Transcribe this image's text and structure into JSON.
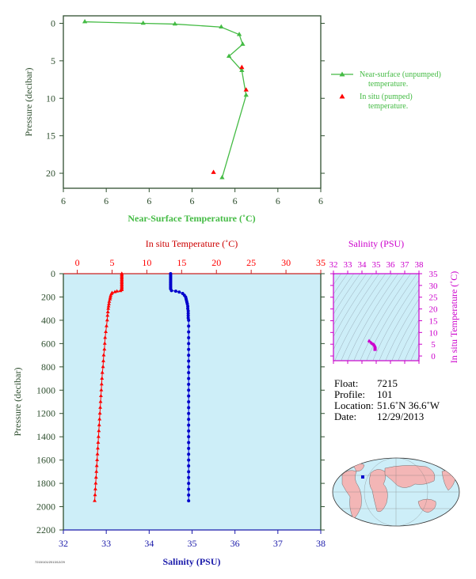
{
  "chart_data": [
    {
      "type": "line",
      "xlabel": "Near-Surface Temperature (˚C)",
      "ylabel": "Pressure (decibar)",
      "x_tick_labels": [
        "6",
        "6",
        "6",
        "6",
        "6",
        "6",
        "6"
      ],
      "y_tick_labels": [
        "0",
        "5",
        "10",
        "15",
        "20"
      ],
      "y_range": [
        -1,
        22
      ],
      "legend_position": "right",
      "legend": [
        "Near-surface (unpumped) temperature.",
        "In situ (pumped) temperature."
      ],
      "series": [
        {
          "name": "Near-surface (unpumped) temperature.",
          "points": [
            [
              5.85,
              -0.2
            ],
            [
              6.53,
              0.0
            ],
            [
              6.9,
              0.1
            ],
            [
              7.44,
              0.5
            ],
            [
              7.65,
              1.5
            ],
            [
              7.69,
              2.8
            ],
            [
              7.53,
              4.4
            ],
            [
              7.68,
              6.3
            ],
            [
              7.73,
              9.6
            ],
            [
              7.45,
              20.6
            ]
          ]
        },
        {
          "name": "In situ (pumped) temperature.",
          "points": [
            [
              7.68,
              5.9
            ],
            [
              7.73,
              8.9
            ],
            [
              7.35,
              19.9
            ]
          ]
        }
      ]
    },
    {
      "type": "scatter",
      "ylabel": "Pressure (decibar)",
      "x_top_label": "In situ Temperature (˚C)",
      "x_bottom_label": "Salinity (PSU)",
      "temperature_ticks": [
        "0",
        "5",
        "10",
        "15",
        "20",
        "25",
        "30",
        "35"
      ],
      "salinity_ticks": [
        "32",
        "33",
        "34",
        "35",
        "36",
        "37",
        "38"
      ],
      "pressure_ticks": [
        "0",
        "200",
        "400",
        "600",
        "800",
        "1000",
        "1200",
        "1400",
        "1600",
        "1800",
        "2000",
        "2200"
      ],
      "temperature_range": [
        -2,
        35
      ],
      "salinity_range": [
        32,
        38
      ],
      "pressure_range": [
        0,
        2200
      ],
      "series": [
        {
          "name": "Temperature",
          "points": [
            [
              6.4,
              0
            ],
            [
              6.4,
              10
            ],
            [
              6.4,
              20
            ],
            [
              6.4,
              30
            ],
            [
              6.4,
              40
            ],
            [
              6.4,
              50
            ],
            [
              6.4,
              60
            ],
            [
              6.4,
              70
            ],
            [
              6.4,
              80
            ],
            [
              6.4,
              90
            ],
            [
              6.4,
              100
            ],
            [
              6.4,
              110
            ],
            [
              6.4,
              120
            ],
            [
              6.4,
              130
            ],
            [
              6.4,
              140
            ],
            [
              6.2,
              148
            ],
            [
              5.7,
              152
            ],
            [
              5.4,
              158
            ],
            [
              5.0,
              165
            ],
            [
              4.9,
              175
            ],
            [
              4.8,
              190
            ],
            [
              4.75,
              205
            ],
            [
              4.7,
              220
            ],
            [
              4.6,
              240
            ],
            [
              4.55,
              260
            ],
            [
              4.5,
              280
            ],
            [
              4.45,
              300
            ],
            [
              4.4,
              330
            ],
            [
              4.35,
              360
            ],
            [
              4.3,
              400
            ],
            [
              4.2,
              450
            ],
            [
              4.1,
              500
            ],
            [
              4.0,
              550
            ],
            [
              3.95,
              600
            ],
            [
              3.9,
              650
            ],
            [
              3.8,
              700
            ],
            [
              3.75,
              750
            ],
            [
              3.7,
              800
            ],
            [
              3.6,
              850
            ],
            [
              3.55,
              900
            ],
            [
              3.5,
              950
            ],
            [
              3.45,
              1000
            ],
            [
              3.4,
              1050
            ],
            [
              3.35,
              1100
            ],
            [
              3.3,
              1150
            ],
            [
              3.25,
              1200
            ],
            [
              3.2,
              1250
            ],
            [
              3.15,
              1300
            ],
            [
              3.1,
              1350
            ],
            [
              3.05,
              1400
            ],
            [
              3.0,
              1450
            ],
            [
              2.95,
              1500
            ],
            [
              2.9,
              1550
            ],
            [
              2.85,
              1600
            ],
            [
              2.8,
              1650
            ],
            [
              2.75,
              1700
            ],
            [
              2.7,
              1750
            ],
            [
              2.65,
              1800
            ],
            [
              2.6,
              1850
            ],
            [
              2.55,
              1900
            ],
            [
              2.5,
              1950
            ]
          ]
        },
        {
          "name": "Salinity",
          "points": [
            [
              34.5,
              0
            ],
            [
              34.5,
              10
            ],
            [
              34.5,
              20
            ],
            [
              34.5,
              30
            ],
            [
              34.5,
              40
            ],
            [
              34.5,
              50
            ],
            [
              34.5,
              60
            ],
            [
              34.5,
              70
            ],
            [
              34.5,
              80
            ],
            [
              34.5,
              90
            ],
            [
              34.5,
              100
            ],
            [
              34.5,
              110
            ],
            [
              34.5,
              120
            ],
            [
              34.5,
              130
            ],
            [
              34.52,
              145
            ],
            [
              34.62,
              150
            ],
            [
              34.7,
              158
            ],
            [
              34.78,
              170
            ],
            [
              34.82,
              185
            ],
            [
              34.85,
              200
            ],
            [
              34.86,
              215
            ],
            [
              34.87,
              230
            ],
            [
              34.88,
              245
            ],
            [
              34.89,
              260
            ],
            [
              34.9,
              280
            ],
            [
              34.9,
              300
            ],
            [
              34.91,
              320
            ],
            [
              34.91,
              340
            ],
            [
              34.91,
              360
            ],
            [
              34.91,
              380
            ],
            [
              34.92,
              400
            ],
            [
              34.92,
              450
            ],
            [
              34.92,
              500
            ],
            [
              34.92,
              550
            ],
            [
              34.92,
              600
            ],
            [
              34.92,
              650
            ],
            [
              34.92,
              700
            ],
            [
              34.92,
              750
            ],
            [
              34.92,
              800
            ],
            [
              34.92,
              850
            ],
            [
              34.92,
              900
            ],
            [
              34.92,
              950
            ],
            [
              34.92,
              1000
            ],
            [
              34.92,
              1050
            ],
            [
              34.92,
              1100
            ],
            [
              34.92,
              1150
            ],
            [
              34.92,
              1200
            ],
            [
              34.92,
              1250
            ],
            [
              34.92,
              1300
            ],
            [
              34.92,
              1350
            ],
            [
              34.92,
              1400
            ],
            [
              34.92,
              1450
            ],
            [
              34.92,
              1500
            ],
            [
              34.92,
              1550
            ],
            [
              34.92,
              1600
            ],
            [
              34.92,
              1650
            ],
            [
              34.92,
              1700
            ],
            [
              34.92,
              1750
            ],
            [
              34.92,
              1800
            ],
            [
              34.92,
              1850
            ],
            [
              34.92,
              1900
            ],
            [
              34.92,
              1950
            ]
          ]
        }
      ]
    },
    {
      "type": "scatter",
      "xlabel": "Salinity (PSU)",
      "ylabel": "In situ Temperature (˚C)",
      "x_tick_labels": [
        "32",
        "33",
        "34",
        "35",
        "36",
        "37",
        "38"
      ],
      "y_tick_labels": [
        "0",
        "5",
        "10",
        "15",
        "20",
        "25",
        "30",
        "35"
      ],
      "x_range": [
        32,
        38
      ],
      "y_range": [
        -2,
        35
      ],
      "points": [
        [
          34.5,
          6.4
        ],
        [
          34.55,
          6.1
        ],
        [
          34.65,
          5.6
        ],
        [
          34.72,
          5.2
        ],
        [
          34.8,
          4.9
        ],
        [
          34.85,
          4.7
        ],
        [
          34.88,
          4.5
        ],
        [
          34.9,
          4.3
        ],
        [
          34.92,
          4.0
        ],
        [
          34.92,
          3.7
        ],
        [
          34.92,
          3.4
        ],
        [
          34.92,
          3.1
        ],
        [
          34.92,
          2.8
        ],
        [
          34.92,
          2.6
        ]
      ]
    }
  ],
  "float_info": {
    "float_label": "Float:",
    "float_value": "7215",
    "profile_label": "Profile:",
    "profile_value": "101",
    "location_label": "Location:",
    "location_value": "51.6˚N  36.6˚W",
    "date_label": "Date:",
    "date_value": "12/29/2013"
  },
  "footer_code": "7215/101/2013/12/29",
  "colors": {
    "near_surface": "#44bb44",
    "in_situ_red": "#ff0000",
    "salinity_blue": "#0000cc",
    "magenta": "#cc00cc",
    "panel_fill": "#cdeef8",
    "axis_green": "#2f4f2f",
    "land": "#f3b6b6",
    "ocean": "#cdeef8"
  },
  "icons": [
    "world-map-icon"
  ]
}
